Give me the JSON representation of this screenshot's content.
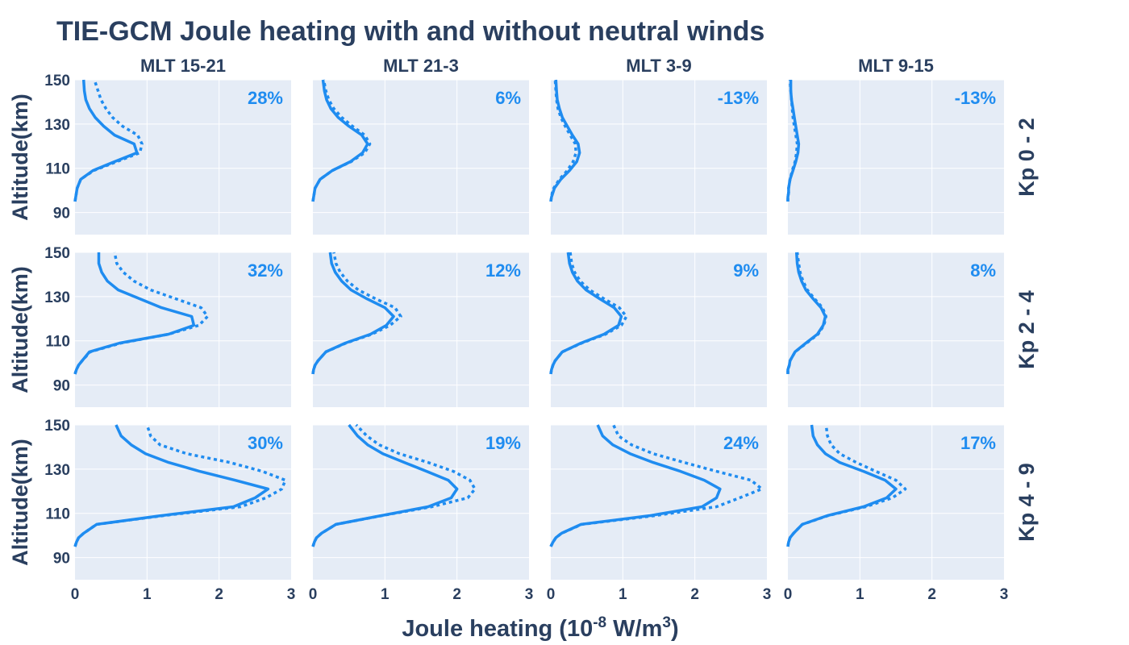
{
  "title": "TIE-GCM Joule heating with and without neutral winds",
  "colors": {
    "line": "#1f8cf0",
    "text": "#2a3f5f",
    "panel_bg": "#e5ecf6",
    "grid": "#ffffff"
  },
  "chart_data": {
    "type": "line",
    "title": "TIE-GCM Joule heating with and without neutral winds",
    "xlabel": "Joule heating (10^-8 W/m^3)",
    "xlabel_parts": {
      "main": "Joule heating (10",
      "exp1": "-8",
      "mid": " W/m",
      "exp2": "3",
      "end": ")"
    },
    "ylabel": "Altitude(km)",
    "xlim": [
      0,
      3
    ],
    "ylim": [
      80,
      150
    ],
    "xticks": [
      "0",
      "1",
      "2",
      "3"
    ],
    "yticks": [
      "90",
      "110",
      "130",
      "150"
    ],
    "grid": true,
    "columns": [
      "MLT 15-21",
      "MLT 21-3",
      "MLT 3-9",
      "MLT 9-15"
    ],
    "rows": [
      "Kp 0 - 2",
      "Kp 2 - 4",
      "Kp 4 - 9"
    ],
    "line_styles": [
      "solid",
      "dotted"
    ],
    "altitudes": [
      95,
      97,
      99,
      101,
      105,
      109,
      113,
      117,
      121,
      125,
      129,
      133,
      137,
      141,
      145,
      150
    ],
    "panels": [
      {
        "row": 0,
        "col": 0,
        "percent": "28%",
        "solid": [
          0,
          0.01,
          0.02,
          0.03,
          0.08,
          0.25,
          0.55,
          0.86,
          0.82,
          0.55,
          0.4,
          0.28,
          0.2,
          0.15,
          0.13,
          0.12
        ],
        "dotted": [
          0,
          0.01,
          0.02,
          0.03,
          0.08,
          0.26,
          0.58,
          0.9,
          0.93,
          0.87,
          0.66,
          0.52,
          0.43,
          0.36,
          0.32,
          0.27
        ]
      },
      {
        "row": 0,
        "col": 1,
        "percent": "6%",
        "solid": [
          0,
          0.01,
          0.02,
          0.03,
          0.1,
          0.27,
          0.52,
          0.69,
          0.76,
          0.68,
          0.5,
          0.35,
          0.25,
          0.19,
          0.16,
          0.14
        ],
        "dotted": [
          0,
          0.01,
          0.02,
          0.03,
          0.1,
          0.27,
          0.53,
          0.72,
          0.79,
          0.72,
          0.55,
          0.4,
          0.29,
          0.22,
          0.18,
          0.15
        ]
      },
      {
        "row": 0,
        "col": 2,
        "percent": "-13%",
        "solid": [
          0,
          0.01,
          0.03,
          0.05,
          0.14,
          0.26,
          0.36,
          0.4,
          0.38,
          0.3,
          0.23,
          0.16,
          0.12,
          0.09,
          0.08,
          0.07
        ],
        "dotted": [
          0,
          0.01,
          0.02,
          0.04,
          0.12,
          0.23,
          0.31,
          0.35,
          0.34,
          0.27,
          0.2,
          0.14,
          0.1,
          0.08,
          0.07,
          0.06
        ]
      },
      {
        "row": 0,
        "col": 3,
        "percent": "-13%",
        "solid": [
          0,
          0.0,
          0.01,
          0.01,
          0.03,
          0.07,
          0.11,
          0.14,
          0.15,
          0.13,
          0.11,
          0.09,
          0.07,
          0.05,
          0.04,
          0.04
        ],
        "dotted": [
          0,
          0.0,
          0.01,
          0.01,
          0.03,
          0.06,
          0.1,
          0.12,
          0.13,
          0.11,
          0.09,
          0.07,
          0.06,
          0.05,
          0.04,
          0.03
        ]
      },
      {
        "row": 1,
        "col": 0,
        "percent": "32%",
        "solid": [
          0,
          0.02,
          0.05,
          0.1,
          0.2,
          0.62,
          1.3,
          1.65,
          1.62,
          1.2,
          0.9,
          0.6,
          0.45,
          0.37,
          0.33,
          0.33
        ],
        "dotted": [
          0,
          0.02,
          0.05,
          0.1,
          0.21,
          0.64,
          1.3,
          1.72,
          1.84,
          1.75,
          1.4,
          1.05,
          0.82,
          0.67,
          0.58,
          0.55
        ]
      },
      {
        "row": 1,
        "col": 1,
        "percent": "12%",
        "solid": [
          0,
          0.01,
          0.03,
          0.07,
          0.18,
          0.45,
          0.8,
          1.02,
          1.12,
          1.0,
          0.75,
          0.53,
          0.4,
          0.31,
          0.26,
          0.24
        ],
        "dotted": [
          0,
          0.01,
          0.03,
          0.07,
          0.18,
          0.46,
          0.82,
          1.07,
          1.22,
          1.14,
          0.87,
          0.63,
          0.48,
          0.38,
          0.32,
          0.29
        ]
      },
      {
        "row": 1,
        "col": 2,
        "percent": "9%",
        "solid": [
          0,
          0.01,
          0.03,
          0.06,
          0.16,
          0.42,
          0.74,
          0.94,
          0.98,
          0.88,
          0.68,
          0.49,
          0.37,
          0.3,
          0.26,
          0.24
        ],
        "dotted": [
          0,
          0.01,
          0.03,
          0.06,
          0.16,
          0.43,
          0.76,
          0.98,
          1.05,
          0.95,
          0.74,
          0.54,
          0.41,
          0.33,
          0.29,
          0.27
        ]
      },
      {
        "row": 1,
        "col": 3,
        "percent": "8%",
        "solid": [
          0,
          0.0,
          0.02,
          0.03,
          0.1,
          0.25,
          0.41,
          0.49,
          0.52,
          0.46,
          0.35,
          0.25,
          0.19,
          0.15,
          0.13,
          0.12
        ],
        "dotted": [
          0,
          0.0,
          0.02,
          0.03,
          0.1,
          0.26,
          0.42,
          0.5,
          0.53,
          0.48,
          0.37,
          0.27,
          0.21,
          0.17,
          0.15,
          0.13
        ]
      },
      {
        "row": 2,
        "col": 0,
        "percent": "30%",
        "solid": [
          0,
          0.02,
          0.05,
          0.12,
          0.3,
          1.2,
          2.2,
          2.5,
          2.68,
          2.22,
          1.73,
          1.3,
          0.98,
          0.78,
          0.64,
          0.57
        ],
        "dotted": [
          0,
          0.02,
          0.05,
          0.12,
          0.3,
          1.23,
          2.3,
          2.65,
          2.87,
          2.92,
          2.6,
          2.15,
          1.55,
          1.18,
          1.05,
          1.0
        ]
      },
      {
        "row": 2,
        "col": 1,
        "percent": "19%",
        "solid": [
          0,
          0.02,
          0.05,
          0.12,
          0.32,
          0.95,
          1.6,
          1.92,
          2.0,
          1.88,
          1.58,
          1.27,
          0.97,
          0.76,
          0.62,
          0.5
        ],
        "dotted": [
          0,
          0.02,
          0.05,
          0.12,
          0.32,
          0.96,
          1.65,
          2.15,
          2.25,
          2.18,
          1.95,
          1.6,
          1.2,
          0.92,
          0.75,
          0.6
        ]
      },
      {
        "row": 2,
        "col": 2,
        "percent": "24%",
        "solid": [
          0,
          0.03,
          0.07,
          0.15,
          0.42,
          1.38,
          2.1,
          2.3,
          2.35,
          2.13,
          1.8,
          1.42,
          1.1,
          0.86,
          0.72,
          0.65
        ],
        "dotted": [
          0,
          0.03,
          0.07,
          0.15,
          0.43,
          1.45,
          2.3,
          2.62,
          2.93,
          2.78,
          2.3,
          1.85,
          1.42,
          1.12,
          0.94,
          0.87
        ]
      },
      {
        "row": 2,
        "col": 3,
        "percent": "17%",
        "solid": [
          0,
          0.01,
          0.03,
          0.08,
          0.2,
          0.55,
          1.05,
          1.37,
          1.5,
          1.35,
          1.05,
          0.72,
          0.52,
          0.41,
          0.35,
          0.33
        ],
        "dotted": [
          0,
          0.01,
          0.03,
          0.08,
          0.2,
          0.56,
          1.08,
          1.45,
          1.63,
          1.5,
          1.22,
          0.95,
          0.72,
          0.6,
          0.55,
          0.53
        ]
      }
    ]
  }
}
